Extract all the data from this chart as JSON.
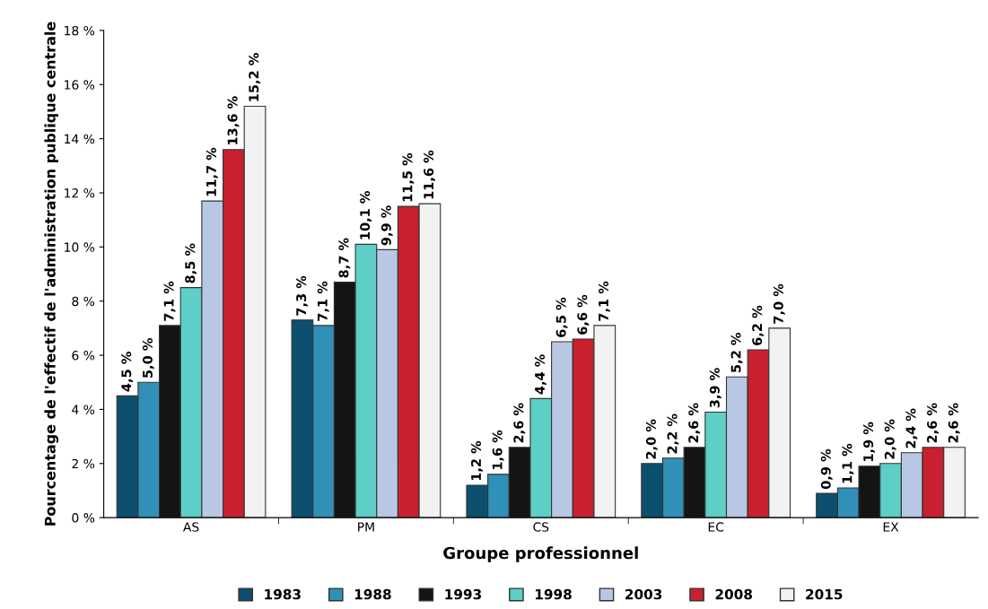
{
  "chart_data": {
    "type": "bar",
    "xlabel": "Groupe professionnel",
    "ylabel": "Pourcentage de l'effectif de l'administration publique centrale",
    "categories": [
      "AS",
      "PM",
      "CS",
      "EC",
      "EX"
    ],
    "series": [
      {
        "name": "1983",
        "color": "#0d4f6e",
        "values": [
          4.5,
          7.3,
          1.2,
          2.0,
          0.9
        ],
        "value_labels": [
          "4,5 %",
          "7,3 %",
          "1,2 %",
          "2,0 %",
          "0,9 %"
        ]
      },
      {
        "name": "1988",
        "color": "#3090b8",
        "values": [
          5.0,
          7.1,
          1.6,
          2.2,
          1.1
        ],
        "value_labels": [
          "5,0 %",
          "7,1 %",
          "1,6 %",
          "2,2 %",
          "1,1 %"
        ]
      },
      {
        "name": "1993",
        "color": "#141414",
        "values": [
          7.1,
          8.7,
          2.6,
          2.6,
          1.9
        ],
        "value_labels": [
          "7,1 %",
          "8,7 %",
          "2,6 %",
          "2,6 %",
          "1,9 %"
        ]
      },
      {
        "name": "1998",
        "color": "#5ecfc6",
        "values": [
          8.5,
          10.1,
          4.4,
          3.9,
          2.0
        ],
        "value_labels": [
          "8,5 %",
          "10,1 %",
          "4,4 %",
          "3,9 %",
          "2,0 %"
        ]
      },
      {
        "name": "2003",
        "color": "#b8c8e4",
        "values": [
          11.7,
          9.9,
          6.5,
          5.2,
          2.4
        ],
        "value_labels": [
          "11,7 %",
          "9,9 %",
          "6,5 %",
          "5,2 %",
          "2,4 %"
        ]
      },
      {
        "name": "2008",
        "color": "#c8202e",
        "values": [
          13.6,
          11.5,
          6.6,
          6.2,
          2.6
        ],
        "value_labels": [
          "13,6 %",
          "11,5 %",
          "6,6 %",
          "6,2 %",
          "2,6 %"
        ]
      },
      {
        "name": "2015",
        "color": "#f2f2f2",
        "values": [
          15.2,
          11.6,
          7.1,
          7.0,
          2.6
        ],
        "value_labels": [
          "15,2 %",
          "11,6 %",
          "7,1 %",
          "7,0 %",
          "2,6 %"
        ]
      }
    ],
    "ylim": [
      0,
      18
    ],
    "yticks": [
      {
        "value": 0,
        "label": "0 %"
      },
      {
        "value": 2,
        "label": "2 %"
      },
      {
        "value": 4,
        "label": "4 %"
      },
      {
        "value": 6,
        "label": "6 %"
      },
      {
        "value": 8,
        "label": "8 %"
      },
      {
        "value": 10,
        "label": "10 %"
      },
      {
        "value": 12,
        "label": "12 %"
      },
      {
        "value": 14,
        "label": "14 %"
      },
      {
        "value": 16,
        "label": "16 %"
      },
      {
        "value": 18,
        "label": "18 %"
      }
    ],
    "grid": false,
    "legend": "bottom"
  }
}
